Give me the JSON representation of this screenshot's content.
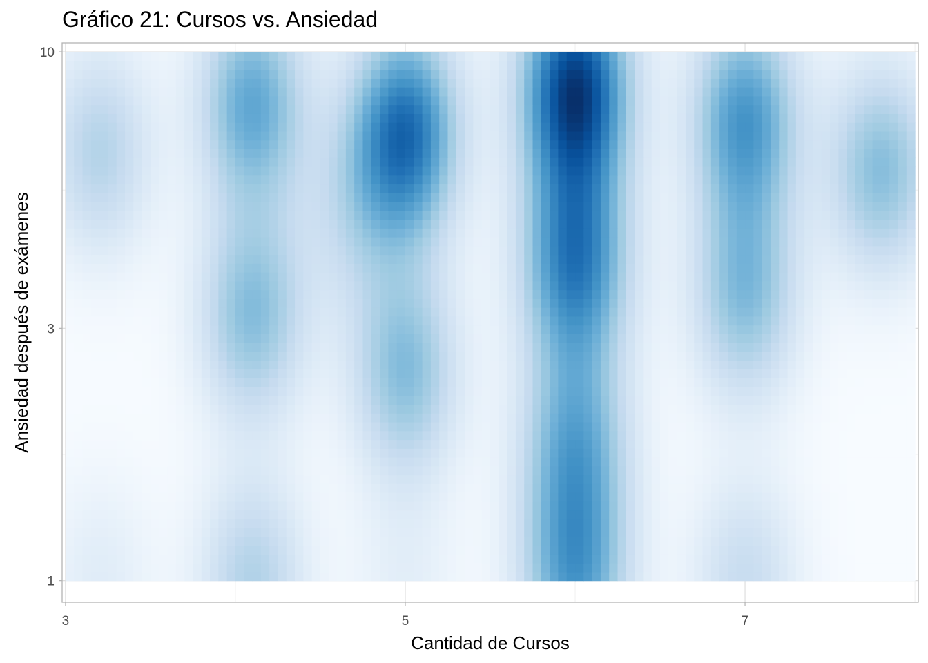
{
  "chart_data": {
    "type": "heatmap",
    "title": "Gráfico 21: Cursos vs. Ansiedad",
    "xlabel": "Cantidad de Cursos",
    "ylabel": "Ansiedad después de exámenes",
    "x_scale": "linear",
    "y_scale": "log10",
    "xlim": [
      2.98,
      8.02
    ],
    "ylim": [
      0.91,
      10.4
    ],
    "x_range_filled": [
      3,
      8
    ],
    "y_range_filled": [
      1,
      10
    ],
    "x_ticks": [
      3,
      5,
      7
    ],
    "x_tick_labels": [
      "3",
      "5",
      "7"
    ],
    "y_ticks": [
      1,
      3,
      10
    ],
    "y_tick_labels": [
      "1",
      "3",
      "10"
    ],
    "grid": true,
    "legend": "none",
    "color_scale": [
      "#f7fbff",
      "#deebf7",
      "#c6dbef",
      "#9ecae1",
      "#6baed6",
      "#4292c6",
      "#2171b5",
      "#08519c",
      "#08306b"
    ],
    "density_peaks": [
      {
        "x": 3.2,
        "y": 6.5,
        "density": 0.32
      },
      {
        "x": 3.2,
        "y": 1.0,
        "density": 0.12
      },
      {
        "x": 4.1,
        "y": 8.0,
        "density": 0.55
      },
      {
        "x": 4.1,
        "y": 3.2,
        "density": 0.45
      },
      {
        "x": 4.1,
        "y": 1.0,
        "density": 0.33
      },
      {
        "x": 4.7,
        "y": 5.0,
        "density": 0.2
      },
      {
        "x": 5.0,
        "y": 7.0,
        "density": 0.8
      },
      {
        "x": 5.0,
        "y": 2.5,
        "density": 0.45
      },
      {
        "x": 5.0,
        "y": 1.0,
        "density": 0.1
      },
      {
        "x": 6.0,
        "y": 8.5,
        "density": 1.0
      },
      {
        "x": 6.0,
        "y": 4.0,
        "density": 0.72
      },
      {
        "x": 6.0,
        "y": 1.8,
        "density": 0.5
      },
      {
        "x": 6.0,
        "y": 1.0,
        "density": 0.55
      },
      {
        "x": 7.0,
        "y": 7.5,
        "density": 0.62
      },
      {
        "x": 7.0,
        "y": 3.5,
        "density": 0.45
      },
      {
        "x": 7.0,
        "y": 1.0,
        "density": 0.25
      },
      {
        "x": 7.8,
        "y": 6.0,
        "density": 0.45
      }
    ]
  }
}
